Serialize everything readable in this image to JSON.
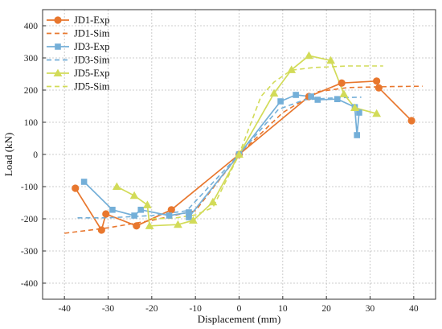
{
  "chart_data": {
    "type": "line",
    "title": "",
    "xlabel": "Displacement (mm)",
    "ylabel": "Load (kN)",
    "xlim": [
      -45,
      45
    ],
    "ylim": [
      -450,
      450
    ],
    "xticks": [
      -40,
      -30,
      -20,
      -10,
      0,
      10,
      20,
      30,
      40
    ],
    "yticks": [
      -400,
      -300,
      -200,
      -100,
      0,
      100,
      200,
      300,
      400
    ],
    "grid": true,
    "legend_position": "top-left",
    "series": [
      {
        "name": "JD1-Exp",
        "color": "#E8772E",
        "style": "solid",
        "marker": "circle",
        "points": [
          [
            -37.5,
            -105
          ],
          [
            -31.5,
            -235
          ],
          [
            -30.5,
            -185
          ],
          [
            -23.5,
            -222
          ],
          [
            -15.5,
            -172
          ],
          [
            0,
            0
          ],
          [
            16,
            180
          ],
          [
            23.5,
            222
          ],
          [
            31.5,
            228
          ],
          [
            32,
            207
          ],
          [
            39.5,
            105
          ]
        ]
      },
      {
        "name": "JD1-Sim",
        "color": "#E8772E",
        "style": "dashed",
        "marker": "none",
        "points": [
          [
            -40,
            -245
          ],
          [
            -30,
            -228
          ],
          [
            -20,
            -205
          ],
          [
            -10,
            -175
          ],
          [
            0,
            0
          ],
          [
            10,
            130
          ],
          [
            18,
            195
          ],
          [
            25,
            208
          ],
          [
            35,
            211
          ],
          [
            42,
            212
          ]
        ]
      },
      {
        "name": "JD3-Exp",
        "color": "#74AFD8",
        "style": "solid",
        "marker": "square",
        "points": [
          [
            -35.5,
            -85
          ],
          [
            -29,
            -172
          ],
          [
            -24,
            -190
          ],
          [
            -22.5,
            -172
          ],
          [
            -16,
            -190
          ],
          [
            -11.5,
            -180
          ],
          [
            -11.5,
            -195
          ],
          [
            0,
            0
          ],
          [
            9.5,
            165
          ],
          [
            13,
            185
          ],
          [
            16.5,
            180
          ],
          [
            18,
            170
          ],
          [
            22.5,
            172
          ],
          [
            26.5,
            147
          ],
          [
            27,
            60
          ],
          [
            27.5,
            130
          ]
        ]
      },
      {
        "name": "JD3-Sim",
        "color": "#74AFD8",
        "style": "dashed",
        "marker": "none",
        "points": [
          [
            -37,
            -197
          ],
          [
            -30,
            -197
          ],
          [
            -20,
            -190
          ],
          [
            -12,
            -175
          ],
          [
            0,
            0
          ],
          [
            9,
            140
          ],
          [
            15,
            170
          ],
          [
            22,
            176
          ],
          [
            28,
            178
          ]
        ]
      },
      {
        "name": "JD5-Exp",
        "color": "#D2DB58",
        "style": "solid",
        "marker": "triangle",
        "points": [
          [
            -28,
            -100
          ],
          [
            -24,
            -128
          ],
          [
            -21,
            -157
          ],
          [
            -20.5,
            -222
          ],
          [
            -14,
            -218
          ],
          [
            -10.5,
            -205
          ],
          [
            -6,
            -148
          ],
          [
            0,
            0
          ],
          [
            8,
            190
          ],
          [
            12,
            263
          ],
          [
            16,
            307
          ],
          [
            21,
            292
          ],
          [
            24,
            188
          ],
          [
            26.5,
            145
          ],
          [
            31.5,
            127
          ]
        ]
      },
      {
        "name": "JD5-Sim",
        "color": "#D2DB58",
        "style": "dashed",
        "marker": "none",
        "points": [
          [
            -20,
            -200
          ],
          [
            -15,
            -198
          ],
          [
            -10,
            -188
          ],
          [
            -6,
            -165
          ],
          [
            0,
            0
          ],
          [
            5,
            180
          ],
          [
            8,
            225
          ],
          [
            12,
            262
          ],
          [
            17,
            270
          ],
          [
            25,
            275
          ],
          [
            33,
            275
          ]
        ]
      }
    ]
  }
}
